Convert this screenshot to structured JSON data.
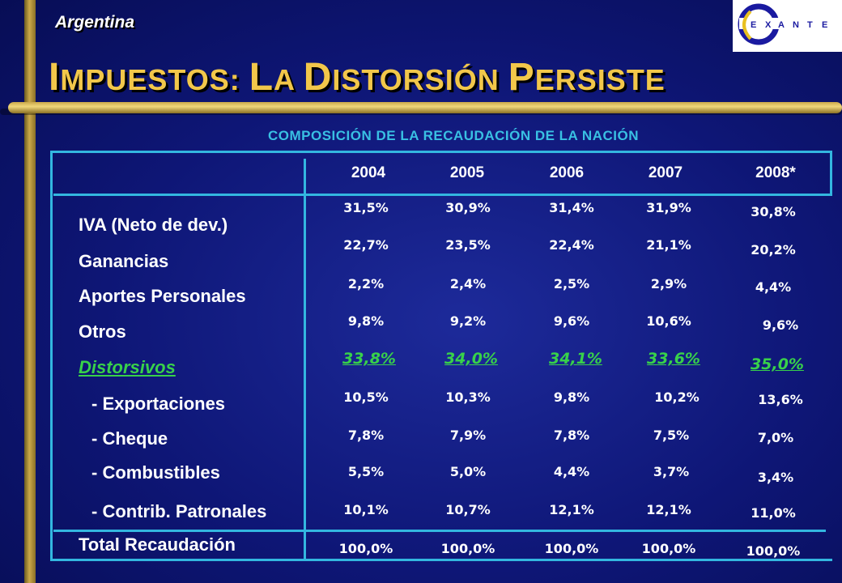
{
  "header": {
    "country": "Argentina",
    "logo_text": "EXANTE"
  },
  "title": {
    "first": [
      "I",
      "MPUESTOS",
      ": "
    ],
    "parts": [
      [
        "L",
        "A "
      ],
      [
        "D",
        "ISTORSIÓN "
      ],
      [
        "P",
        "ERSISTE"
      ]
    ]
  },
  "title_text": {
    "c1": "I",
    "s1": "MPUESTOS: ",
    "c2": "L",
    "s2": "A ",
    "c3": "D",
    "s3": "ISTORSIÓN ",
    "c4": "P",
    "s4": "ERSISTE"
  },
  "subtitle": "COMPOSICIÓN DE LA RECAUDACIÓN DE LA NACIÓN",
  "table": {
    "years": [
      "2004",
      "2005",
      "2006",
      "2007",
      "2008*"
    ],
    "rows": [
      {
        "label": "IVA (Neto de dev.)",
        "values": [
          "31,5%",
          "30,9%",
          "31,4%",
          "31,9%",
          "30,8%"
        ]
      },
      {
        "label": "Ganancias",
        "values": [
          "22,7%",
          "23,5%",
          "22,4%",
          "21,1%",
          "20,2%"
        ]
      },
      {
        "label": "Aportes Personales",
        "values": [
          "2,2%",
          "2,4%",
          "2,5%",
          "2,9%",
          "4,4%"
        ]
      },
      {
        "label": "Otros",
        "values": [
          "9,8%",
          "9,2%",
          "9,6%",
          "10,6%",
          "9,6%"
        ]
      },
      {
        "label": "Distorsivos",
        "values": [
          "33,8%",
          "34,0%",
          "34,1%",
          "33,6%",
          "35,0%"
        ]
      },
      {
        "label": "- Exportaciones",
        "values": [
          "10,5%",
          "10,3%",
          "9,8%",
          "10,2%",
          "13,6%"
        ]
      },
      {
        "label": "- Cheque",
        "values": [
          "7,8%",
          "7,9%",
          "7,8%",
          "7,5%",
          "7,0%"
        ]
      },
      {
        "label": "- Combustibles",
        "values": [
          "5,5%",
          "5,0%",
          "4,4%",
          "3,7%",
          "3,4%"
        ]
      },
      {
        "label": "- Contrib. Patronales",
        "values": [
          "10,1%",
          "10,7%",
          "12,1%",
          "12,1%",
          "11,0%"
        ]
      },
      {
        "label": "Total Recaudación",
        "values": [
          "100,0%",
          "100,0%",
          "100,0%",
          "100,0%",
          "100,0%"
        ]
      }
    ]
  },
  "colors": {
    "background": "#0e1676",
    "gold": "#f2c74a",
    "accent": "#39c0e3",
    "highlight": "#38d14a"
  }
}
